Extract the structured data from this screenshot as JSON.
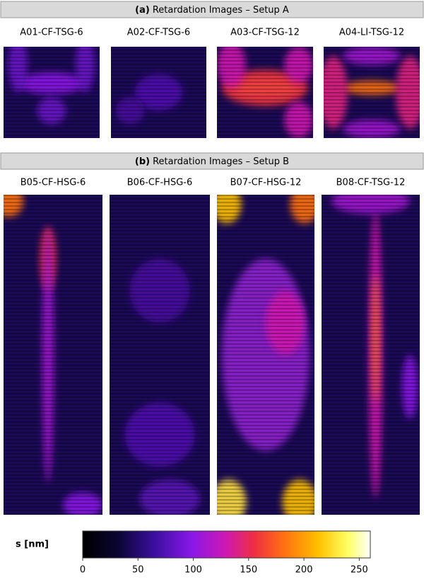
{
  "panels": [
    {
      "tag": "(a)",
      "title": "Retardation Images – Setup A",
      "images": [
        "A01-CF-TSG-6",
        "A02-CF-TSG-6",
        "A03-CF-TSG-12",
        "A04-LI-TSG-12"
      ]
    },
    {
      "tag": "(b)",
      "title": "Retardation Images – Setup B",
      "images": [
        "B05-CF-HSG-6",
        "B06-CF-HSG-6",
        "B07-CF-HSG-12",
        "B08-CF-TSG-12"
      ]
    }
  ],
  "colorbar": {
    "label": "s [nm]",
    "clim": [
      0,
      260
    ],
    "ticks": [
      0,
      50,
      100,
      150,
      200,
      250
    ]
  }
}
